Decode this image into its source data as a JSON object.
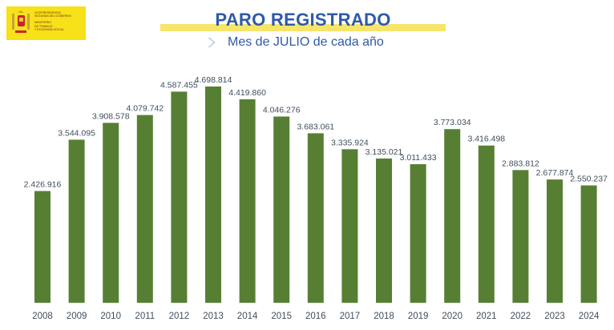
{
  "logo": {
    "line1": "Vicepresidencia",
    "line2": "Segunda del Gobierno",
    "line3": "Ministerio",
    "line4": "de Trabajo",
    "line5": "y Economía Social",
    "color": "#f7e118"
  },
  "header": {
    "title": "PARO REGISTRADO",
    "subtitle": "Mes de JULIO de cada año",
    "title_color": "#2e5aa7",
    "band_color": "#f7e46a"
  },
  "chart_data": {
    "type": "bar",
    "categories": [
      "2008",
      "2009",
      "2010",
      "2011",
      "2012",
      "2013",
      "2014",
      "2015",
      "2016",
      "2017",
      "2018",
      "2019",
      "2020",
      "2021",
      "2022",
      "2023",
      "2024"
    ],
    "values": [
      2426916,
      3544095,
      3908578,
      4079742,
      4587455,
      4698814,
      4419860,
      4046276,
      3683061,
      3335924,
      3135021,
      3011433,
      3773034,
      3416498,
      2883812,
      2677874,
      2550237
    ],
    "labels": [
      "2.426.916",
      "3.544.095",
      "3.908.578",
      "4.079.742",
      "4.587.455",
      "4.698.814",
      "4.419.860",
      "4.046.276",
      "3.683.061",
      "3.335.924",
      "3.135.021",
      "3.011.433",
      "3.773.034",
      "3.416.498",
      "2.883.812",
      "2.677.874",
      "2.550.237"
    ],
    "title": "",
    "xlabel": "",
    "ylabel": "",
    "ylim": [
      0,
      4698814
    ],
    "grid": false,
    "legend": "none",
    "bar_color": "#577f33"
  }
}
